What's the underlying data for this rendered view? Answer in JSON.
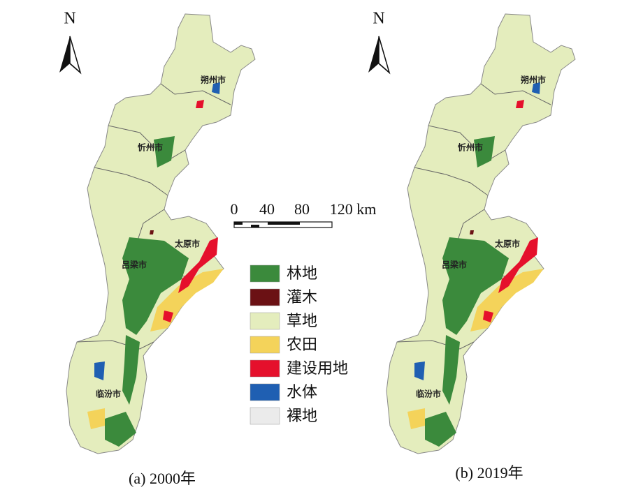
{
  "panels": [
    {
      "north": "N",
      "caption": "(a) 2000年",
      "cities": [
        "朔州市",
        "忻州市",
        "太原市",
        "吕梁市",
        "临汾市"
      ]
    },
    {
      "north": "N",
      "caption": "(b) 2019年",
      "cities": [
        "朔州市",
        "忻州市",
        "太原市",
        "吕梁市",
        "临汾市"
      ]
    }
  ],
  "scale_bar": {
    "labels": [
      "0",
      "40",
      "80",
      "120 km"
    ]
  },
  "legend": [
    {
      "label": "林地",
      "color": "#3b8a3c"
    },
    {
      "label": "灌木",
      "color": "#6b1114"
    },
    {
      "label": "草地",
      "color": "#e4edbd"
    },
    {
      "label": "农田",
      "color": "#f4d35a"
    },
    {
      "label": "建设用地",
      "color": "#e5102c"
    },
    {
      "label": "水体",
      "color": "#1f5fb2"
    },
    {
      "label": "裸地",
      "color": "#ebebeb"
    }
  ]
}
